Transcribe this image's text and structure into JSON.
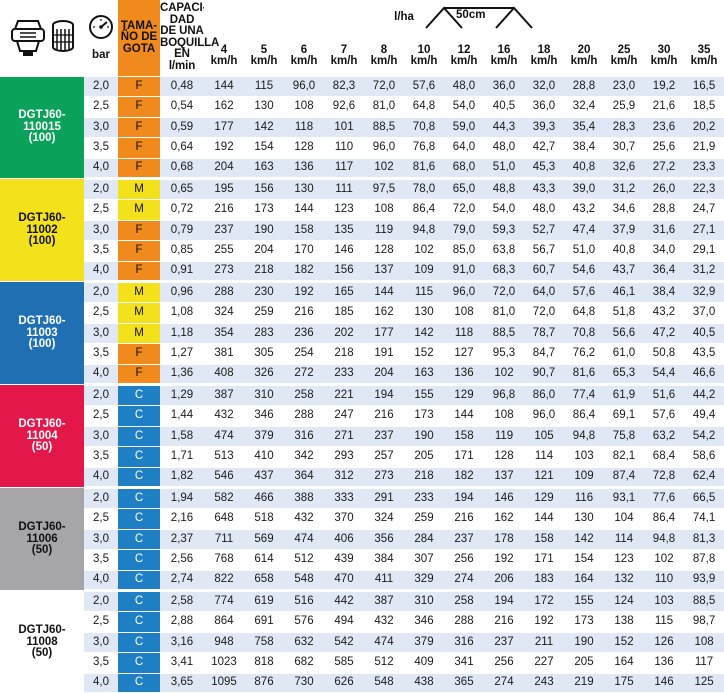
{
  "header": {
    "pressure_unit": "bar",
    "droplet_size": "TAMA-\nÑO DE\nGOTA",
    "capacity": "CAPACI-\nDAD\nDE UNA\nBOQUILLA\nEN l/min",
    "rate_unit": "l/ha",
    "spacing": "50cm",
    "speeds": [
      {
        "value": "4",
        "unit": "km/h"
      },
      {
        "value": "5",
        "unit": "km/h"
      },
      {
        "value": "6",
        "unit": "km/h"
      },
      {
        "value": "7",
        "unit": "km/h"
      },
      {
        "value": "8",
        "unit": "km/h"
      },
      {
        "value": "10",
        "unit": "km/h"
      },
      {
        "value": "12",
        "unit": "km/h"
      },
      {
        "value": "16",
        "unit": "km/h"
      },
      {
        "value": "18",
        "unit": "km/h"
      },
      {
        "value": "20",
        "unit": "km/h"
      },
      {
        "value": "25",
        "unit": "km/h"
      },
      {
        "value": "30",
        "unit": "km/h"
      },
      {
        "value": "35",
        "unit": "km/h"
      }
    ],
    "icons": [
      "nozzle-icon",
      "filter-icon",
      "pressure-gauge-icon",
      "spray-fan-icon"
    ]
  },
  "droplet_colors": {
    "F": "#f08a1d",
    "M": "#f3e21b",
    "C": "#1f7fc4"
  },
  "groups": [
    {
      "model": [
        "DGTJ60-",
        "110015",
        "(100)"
      ],
      "color": "#0aa25b",
      "text_color": "#ffffff",
      "rows": [
        [
          "2,0",
          "F",
          "0,48",
          "144",
          "115",
          "96,0",
          "82,3",
          "72,0",
          "57,6",
          "48,0",
          "36,0",
          "32,0",
          "28,8",
          "23,0",
          "19,2",
          "16,5"
        ],
        [
          "2,5",
          "F",
          "0,54",
          "162",
          "130",
          "108",
          "92,6",
          "81,0",
          "64,8",
          "54,0",
          "40,5",
          "36,0",
          "32,4",
          "25,9",
          "21,6",
          "18,5"
        ],
        [
          "3,0",
          "F",
          "0,59",
          "177",
          "142",
          "118",
          "101",
          "88,5",
          "70,8",
          "59,0",
          "44,3",
          "39,3",
          "35,4",
          "28,3",
          "23,6",
          "20,2"
        ],
        [
          "3,5",
          "F",
          "0,64",
          "192",
          "154",
          "128",
          "110",
          "96,0",
          "76,8",
          "64,0",
          "48,0",
          "42,7",
          "38,4",
          "30,7",
          "25,6",
          "21,9"
        ],
        [
          "4,0",
          "F",
          "0,68",
          "204",
          "163",
          "136",
          "117",
          "102",
          "81,6",
          "68,0",
          "51,0",
          "45,3",
          "40,8",
          "32,6",
          "27,2",
          "23,3"
        ]
      ]
    },
    {
      "model": [
        "DGTJ60-",
        "11002",
        "(100)"
      ],
      "color": "#f3e21b",
      "text_color": "#111111",
      "rows": [
        [
          "2,0",
          "M",
          "0,65",
          "195",
          "156",
          "130",
          "111",
          "97,5",
          "78,0",
          "65,0",
          "48,8",
          "43,3",
          "39,0",
          "31,2",
          "26,0",
          "22,3"
        ],
        [
          "2,5",
          "M",
          "0,72",
          "216",
          "173",
          "144",
          "123",
          "108",
          "86,4",
          "72,0",
          "54,0",
          "48,0",
          "43,2",
          "34,6",
          "28,8",
          "24,7"
        ],
        [
          "3,0",
          "F",
          "0,79",
          "237",
          "190",
          "158",
          "135",
          "119",
          "94,8",
          "79,0",
          "59,3",
          "52,7",
          "47,4",
          "37,9",
          "31,6",
          "27,1"
        ],
        [
          "3,5",
          "F",
          "0,85",
          "255",
          "204",
          "170",
          "146",
          "128",
          "102",
          "85,0",
          "63,8",
          "56,7",
          "51,0",
          "40,8",
          "34,0",
          "29,1"
        ],
        [
          "4,0",
          "F",
          "0,91",
          "273",
          "218",
          "182",
          "156",
          "137",
          "109",
          "91,0",
          "68,3",
          "60,7",
          "54,6",
          "43,7",
          "36,4",
          "31,2"
        ]
      ]
    },
    {
      "model": [
        "DGTJ60-",
        "11003",
        "(100)"
      ],
      "color": "#1f6fb2",
      "text_color": "#ffffff",
      "rows": [
        [
          "2,0",
          "M",
          "0,96",
          "288",
          "230",
          "192",
          "165",
          "144",
          "115",
          "96,0",
          "72,0",
          "64,0",
          "57,6",
          "46,1",
          "38,4",
          "32,9"
        ],
        [
          "2,5",
          "M",
          "1,08",
          "324",
          "259",
          "216",
          "185",
          "162",
          "130",
          "108",
          "81,0",
          "72,0",
          "64,8",
          "51,8",
          "43,2",
          "37,0"
        ],
        [
          "3,0",
          "M",
          "1,18",
          "354",
          "283",
          "236",
          "202",
          "177",
          "142",
          "118",
          "88,5",
          "78,7",
          "70,8",
          "56,6",
          "47,2",
          "40,5"
        ],
        [
          "3,5",
          "F",
          "1,27",
          "381",
          "305",
          "254",
          "218",
          "191",
          "152",
          "127",
          "95,3",
          "84,7",
          "76,2",
          "61,0",
          "50,8",
          "43,5"
        ],
        [
          "4,0",
          "F",
          "1,36",
          "408",
          "326",
          "272",
          "233",
          "204",
          "163",
          "136",
          "102",
          "90,7",
          "81,6",
          "65,3",
          "54,4",
          "46,6"
        ]
      ]
    },
    {
      "model": [
        "DGTJ60-",
        "11004",
        "(50)"
      ],
      "color": "#e4174a",
      "text_color": "#ffffff",
      "rows": [
        [
          "2,0",
          "C",
          "1,29",
          "387",
          "310",
          "258",
          "221",
          "194",
          "155",
          "129",
          "96,8",
          "86,0",
          "77,4",
          "61,9",
          "51,6",
          "44,2"
        ],
        [
          "2,5",
          "C",
          "1,44",
          "432",
          "346",
          "288",
          "247",
          "216",
          "173",
          "144",
          "108",
          "96,0",
          "86,4",
          "69,1",
          "57,6",
          "49,4"
        ],
        [
          "3,0",
          "C",
          "1,58",
          "474",
          "379",
          "316",
          "271",
          "237",
          "190",
          "158",
          "119",
          "105",
          "94,8",
          "75,8",
          "63,2",
          "54,2"
        ],
        [
          "3,5",
          "C",
          "1,71",
          "513",
          "410",
          "342",
          "293",
          "257",
          "205",
          "171",
          "128",
          "114",
          "103",
          "82,1",
          "68,4",
          "58,6"
        ],
        [
          "4,0",
          "C",
          "1,82",
          "546",
          "437",
          "364",
          "312",
          "273",
          "218",
          "182",
          "137",
          "121",
          "109",
          "87,4",
          "72,8",
          "62,4"
        ]
      ]
    },
    {
      "model": [
        "DGTJ60-",
        "11006",
        "(50)"
      ],
      "color": "#a6a6a8",
      "text_color": "#111111",
      "rows": [
        [
          "2,0",
          "C",
          "1,94",
          "582",
          "466",
          "388",
          "333",
          "291",
          "233",
          "194",
          "146",
          "129",
          "116",
          "93,1",
          "77,6",
          "66,5"
        ],
        [
          "2,5",
          "C",
          "2,16",
          "648",
          "518",
          "432",
          "370",
          "324",
          "259",
          "216",
          "162",
          "144",
          "130",
          "104",
          "86,4",
          "74,1"
        ],
        [
          "3,0",
          "C",
          "2,37",
          "711",
          "569",
          "474",
          "406",
          "356",
          "284",
          "237",
          "178",
          "158",
          "142",
          "114",
          "94,8",
          "81,3"
        ],
        [
          "3,5",
          "C",
          "2,56",
          "768",
          "614",
          "512",
          "439",
          "384",
          "307",
          "256",
          "192",
          "171",
          "154",
          "123",
          "102",
          "87,8"
        ],
        [
          "4,0",
          "C",
          "2,74",
          "822",
          "658",
          "548",
          "470",
          "411",
          "329",
          "274",
          "206",
          "183",
          "164",
          "132",
          "110",
          "93,9"
        ]
      ]
    },
    {
      "model": [
        "DGTJ60-",
        "11008",
        "(50)"
      ],
      "color": "#ffffff",
      "text_color": "#111111",
      "rows": [
        [
          "2,0",
          "C",
          "2,58",
          "774",
          "619",
          "516",
          "442",
          "387",
          "310",
          "258",
          "194",
          "172",
          "155",
          "124",
          "103",
          "88,5"
        ],
        [
          "2,5",
          "C",
          "2,88",
          "864",
          "691",
          "576",
          "494",
          "432",
          "346",
          "288",
          "216",
          "192",
          "173",
          "138",
          "115",
          "98,7"
        ],
        [
          "3,0",
          "C",
          "3,16",
          "948",
          "758",
          "632",
          "542",
          "474",
          "379",
          "316",
          "237",
          "211",
          "190",
          "152",
          "126",
          "108"
        ],
        [
          "3,5",
          "C",
          "3,41",
          "1023",
          "818",
          "682",
          "585",
          "512",
          "409",
          "341",
          "256",
          "227",
          "205",
          "164",
          "136",
          "117"
        ],
        [
          "4,0",
          "C",
          "3,65",
          "1095",
          "876",
          "730",
          "626",
          "548",
          "438",
          "365",
          "274",
          "243",
          "219",
          "175",
          "146",
          "125"
        ]
      ]
    }
  ]
}
